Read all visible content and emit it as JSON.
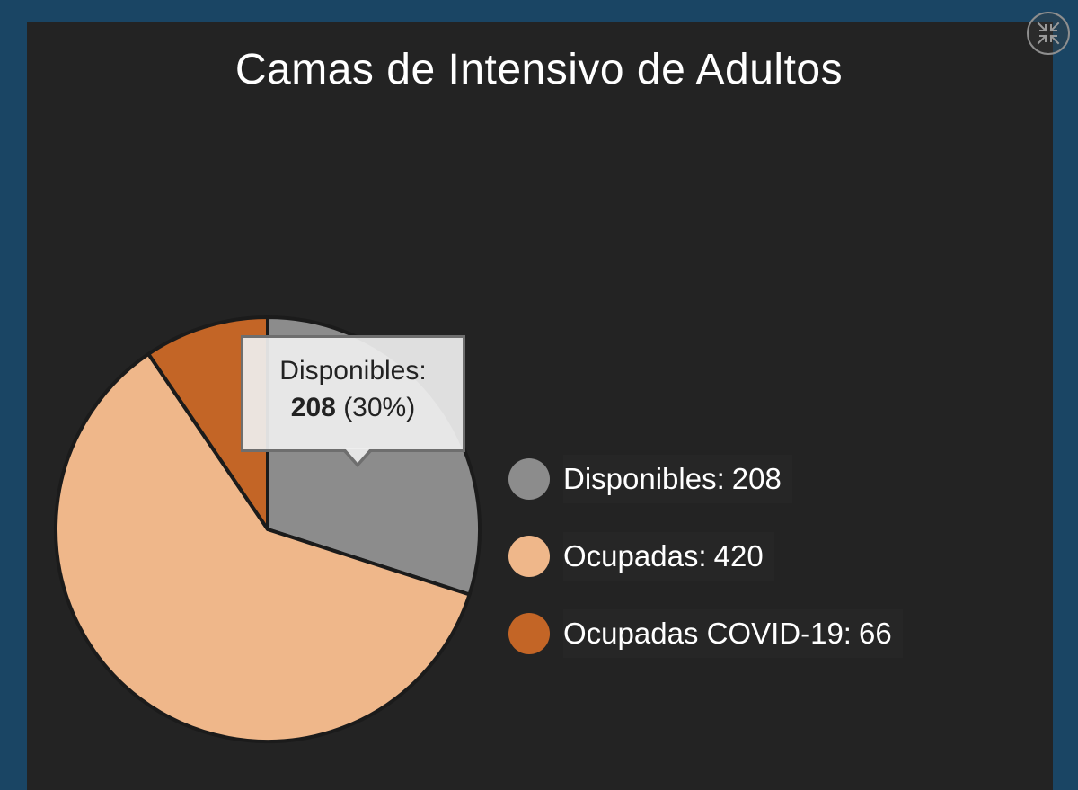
{
  "chart_data": {
    "type": "pie",
    "title": "Camas de Intensivo de Adultos",
    "slices": [
      {
        "label": "Disponibles",
        "value": 208,
        "color": "#8c8c8c"
      },
      {
        "label": "Ocupadas",
        "value": 420,
        "color": "#efb78a"
      },
      {
        "label": "Ocupadas COVID-19",
        "value": 66,
        "color": "#c36526"
      }
    ],
    "legend_position": "right",
    "tooltip": {
      "label": "Disponibles:",
      "value": "208",
      "percent": "(30%)"
    }
  },
  "legend": [
    {
      "label": "Disponibles:",
      "value": "208"
    },
    {
      "label": "Ocupadas:",
      "value": "420"
    },
    {
      "label": "Ocupadas COVID-19:",
      "value": "66"
    }
  ],
  "controls": {
    "collapse_icon": "collapse-arrows-icon"
  }
}
